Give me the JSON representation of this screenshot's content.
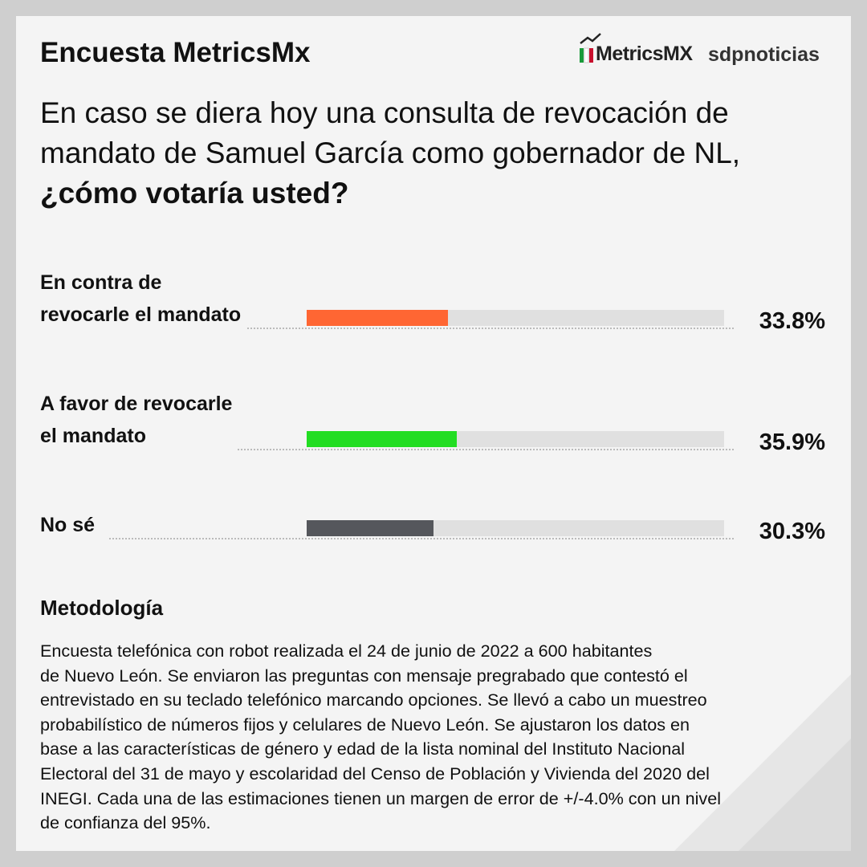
{
  "header": {
    "title": "Encuesta MetricsMx",
    "logo_metrics": "MetricsMX",
    "logo_sdp": "sdpnoticias"
  },
  "chart_data": {
    "type": "bar",
    "question": "En caso se diera hoy una consulta de revocación de mandato de Samuel García como gobernador de NL,",
    "question_bold": "¿cómo votaría usted?",
    "categories": [
      "En contra de\nrevocarle el mandato",
      "A favor de revocarle\nel mandato",
      "No sé"
    ],
    "values": [
      33.8,
      35.9,
      30.3
    ],
    "value_labels": [
      "33.8%",
      "35.9%",
      "30.3%"
    ],
    "colors": [
      "#ff6633",
      "#22dd22",
      "#55575c"
    ],
    "xlim": [
      0,
      100
    ]
  },
  "methodology": {
    "title": "Metodología",
    "lines": [
      "Encuesta telefónica con robot realizada el 24 de junio de 2022 a 600 habitantes",
      "de Nuevo León. Se enviaron las preguntas con mensaje pregrabado que contestó el",
      "entrevistado en su teclado telefónico marcando opciones. Se llevó a cabo un muestreo",
      "probabilístico de números fijos y celulares de Nuevo León. Se ajustaron los datos en",
      "base a las características de género y edad de la lista nominal del Instituto Nacional",
      "Electoral del 31 de mayo y escolaridad del Censo de Población y Vivienda del 2020 del",
      "INEGI. Cada una de las estimaciones tienen un margen de error de +/-4.0% con un nivel",
      "de confianza del 95%."
    ]
  }
}
